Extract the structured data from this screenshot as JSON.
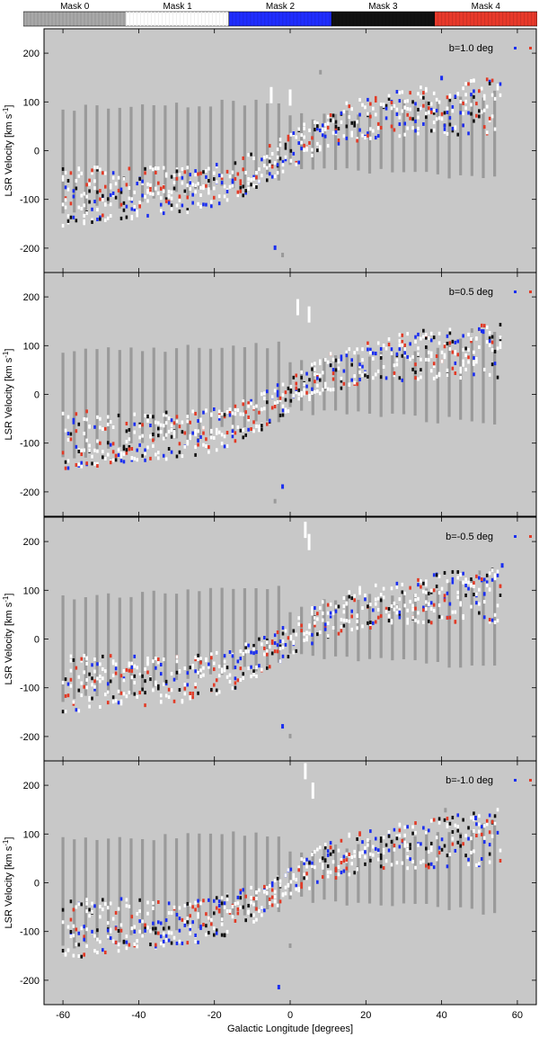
{
  "colorbar": {
    "labels": [
      "Mask 0",
      "Mask 1",
      "Mask 2",
      "Mask 3",
      "Mask 4"
    ],
    "colors": [
      "#a8a8a8",
      "#ffffff",
      "#1f2dff",
      "#111111",
      "#e8392a"
    ]
  },
  "colors": {
    "background": "#c8c8c8",
    "mask0": "#9a9a9a",
    "mask1": "#ffffff",
    "mask2": "#1a2ef0",
    "mask3": "#101010",
    "mask4": "#e23a26"
  },
  "chart_data": [
    {
      "type": "scatter",
      "title": "b=1.0 deg",
      "xlabel": "",
      "ylabel": "LSR Velocity [km s-1]",
      "xlim": [
        -65,
        65
      ],
      "ylim": [
        -250,
        250
      ],
      "yticks": [
        -200,
        -100,
        0,
        100,
        200
      ],
      "grid": false,
      "legend_position": "top-right",
      "seed": 11,
      "outliers": [
        [
          -5,
          125
        ],
        [
          0,
          120
        ],
        [
          8,
          160
        ],
        [
          -4,
          -200
        ],
        [
          -2,
          -215
        ],
        [
          40,
          148
        ]
      ]
    },
    {
      "type": "scatter",
      "title": "b=0.5 deg",
      "xlabel": "",
      "ylabel": "LSR Velocity [km s-1]",
      "xlim": [
        -65,
        65
      ],
      "ylim": [
        -250,
        250
      ],
      "yticks": [
        -200,
        -100,
        0,
        100,
        200
      ],
      "grid": false,
      "legend_position": "top-right",
      "seed": 23,
      "outliers": [
        [
          2,
          190
        ],
        [
          5,
          175
        ],
        [
          -4,
          -220
        ],
        [
          -2,
          -190
        ],
        [
          48,
          130
        ],
        [
          51,
          128
        ]
      ]
    },
    {
      "type": "scatter",
      "title": "b=-0.5 deg",
      "xlabel": "",
      "ylabel": "LSR Velocity [km s-1]",
      "xlim": [
        -65,
        65
      ],
      "ylim": [
        -250,
        250
      ],
      "yticks": [
        -200,
        -100,
        0,
        100,
        200
      ],
      "grid": false,
      "legend_position": "top-right",
      "seed": 37,
      "outliers": [
        [
          4,
          235
        ],
        [
          5,
          210
        ],
        [
          0,
          -200
        ],
        [
          -2,
          -180
        ],
        [
          50,
          135
        ],
        [
          56,
          150
        ]
      ]
    },
    {
      "type": "scatter",
      "title": "b=-1.0 deg",
      "xlabel": "Galactic Longitude [degrees]",
      "ylabel": "LSR Velocity [km s-1]",
      "xlim": [
        -65,
        65
      ],
      "ylim": [
        -250,
        250
      ],
      "yticks": [
        -200,
        -100,
        0,
        100,
        200
      ],
      "xticks": [
        -60,
        -40,
        -20,
        0,
        20,
        40,
        60
      ],
      "grid": false,
      "legend_position": "top-right",
      "seed": 51,
      "outliers": [
        [
          4,
          240
        ],
        [
          6,
          200
        ],
        [
          0,
          -130
        ],
        [
          -3,
          -215
        ],
        [
          41,
          148
        ],
        [
          49,
          132
        ]
      ]
    }
  ]
}
